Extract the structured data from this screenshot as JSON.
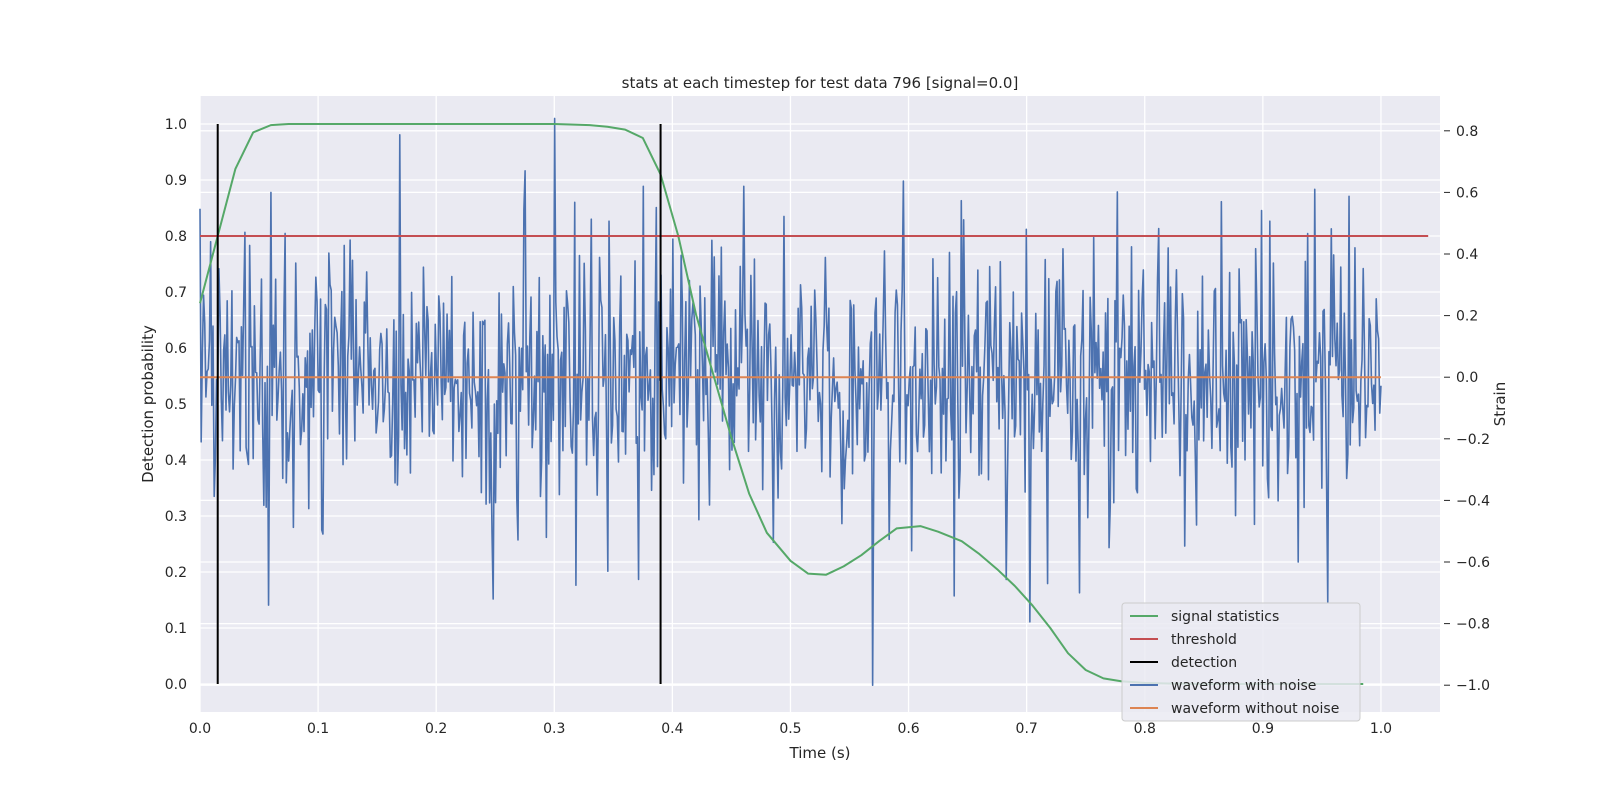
{
  "chart_data": {
    "type": "line",
    "title": "stats at each timestep for test data 796 [signal=0.0]",
    "xlabel": "Time (s)",
    "ylabel": "Detection probability",
    "ylabel_right": "Strain",
    "xlim": [
      0.0,
      1.05
    ],
    "ylim": [
      -0.05,
      1.05
    ],
    "ylim_right": [
      -1.087,
      0.913
    ],
    "xticks": [
      "0.0",
      "0.1",
      "0.2",
      "0.3",
      "0.4",
      "0.5",
      "0.6",
      "0.7",
      "0.8",
      "0.9",
      "1.0"
    ],
    "yticks": [
      "0.0",
      "0.1",
      "0.2",
      "0.3",
      "0.4",
      "0.5",
      "0.6",
      "0.7",
      "0.8",
      "0.9",
      "1.0"
    ],
    "yticks_right": [
      "−1.0",
      "−0.8",
      "−0.6",
      "−0.4",
      "−0.2",
      "0.0",
      "0.2",
      "0.4",
      "0.6",
      "0.8"
    ],
    "grid": true,
    "legend_position": "lower-right",
    "colors": {
      "signal_statistics": "#55a868",
      "threshold": "#c44e52",
      "detection": "#000000",
      "waveform_noise": "#4c72b0",
      "waveform_clean": "#dd8452",
      "plot_bg": "#eaeaf2",
      "grid": "#ffffff"
    },
    "series": [
      {
        "name": "signal statistics",
        "axis": "left",
        "x": [
          0.0,
          0.015,
          0.03,
          0.045,
          0.06,
          0.075,
          0.09,
          0.105,
          0.12,
          0.135,
          0.15,
          0.2,
          0.25,
          0.3,
          0.33,
          0.345,
          0.36,
          0.375,
          0.39,
          0.405,
          0.42,
          0.435,
          0.45,
          0.465,
          0.48,
          0.5,
          0.515,
          0.53,
          0.545,
          0.56,
          0.575,
          0.59,
          0.61,
          0.625,
          0.645,
          0.66,
          0.675,
          0.69,
          0.705,
          0.72,
          0.735,
          0.75,
          0.765,
          0.78,
          0.8,
          0.82,
          0.85,
          0.9,
          0.95,
          0.985
        ],
        "y": [
          0.68,
          0.8,
          0.92,
          0.985,
          0.998,
          1.0,
          1.0,
          1.0,
          1.0,
          1.0,
          1.0,
          1.0,
          1.0,
          1.0,
          0.998,
          0.995,
          0.99,
          0.975,
          0.91,
          0.8,
          0.66,
          0.55,
          0.44,
          0.34,
          0.27,
          0.22,
          0.197,
          0.195,
          0.21,
          0.23,
          0.255,
          0.278,
          0.282,
          0.272,
          0.255,
          0.232,
          0.205,
          0.175,
          0.14,
          0.1,
          0.055,
          0.025,
          0.01,
          0.005,
          0.002,
          0.001,
          0.0,
          0.0,
          0.0,
          0.0
        ]
      },
      {
        "name": "threshold",
        "axis": "left",
        "x": [
          0.0,
          1.04
        ],
        "y": [
          0.8,
          0.8
        ]
      },
      {
        "name": "detection",
        "axis": "left",
        "type": "vlines",
        "x": [
          0.015,
          0.39
        ],
        "ymin": 0.0,
        "ymax": 1.0
      },
      {
        "name": "waveform with noise",
        "axis": "right",
        "noise": true,
        "x_range": [
          0.0,
          1.0
        ],
        "sample_count": 1000,
        "amplitude_std": 0.22,
        "extremes": [
          {
            "x": 0.058,
            "y": -0.74
          },
          {
            "x": 0.06,
            "y": 0.6
          },
          {
            "x": 0.248,
            "y": -0.72
          },
          {
            "x": 0.275,
            "y": 0.67
          },
          {
            "x": 0.3,
            "y": 0.84
          },
          {
            "x": 0.345,
            "y": -0.63
          },
          {
            "x": 0.375,
            "y": 0.62
          },
          {
            "x": 0.46,
            "y": 0.62
          },
          {
            "x": 0.57,
            "y": -1.0
          },
          {
            "x": 0.745,
            "y": -0.7
          },
          {
            "x": 0.865,
            "y": 0.57
          },
          {
            "x": 0.93,
            "y": -0.6
          },
          {
            "x": 0.955,
            "y": -0.73
          }
        ]
      },
      {
        "name": "waveform without noise",
        "axis": "right",
        "x": [
          0.0,
          1.0
        ],
        "y": [
          0.0,
          0.0
        ]
      }
    ]
  }
}
